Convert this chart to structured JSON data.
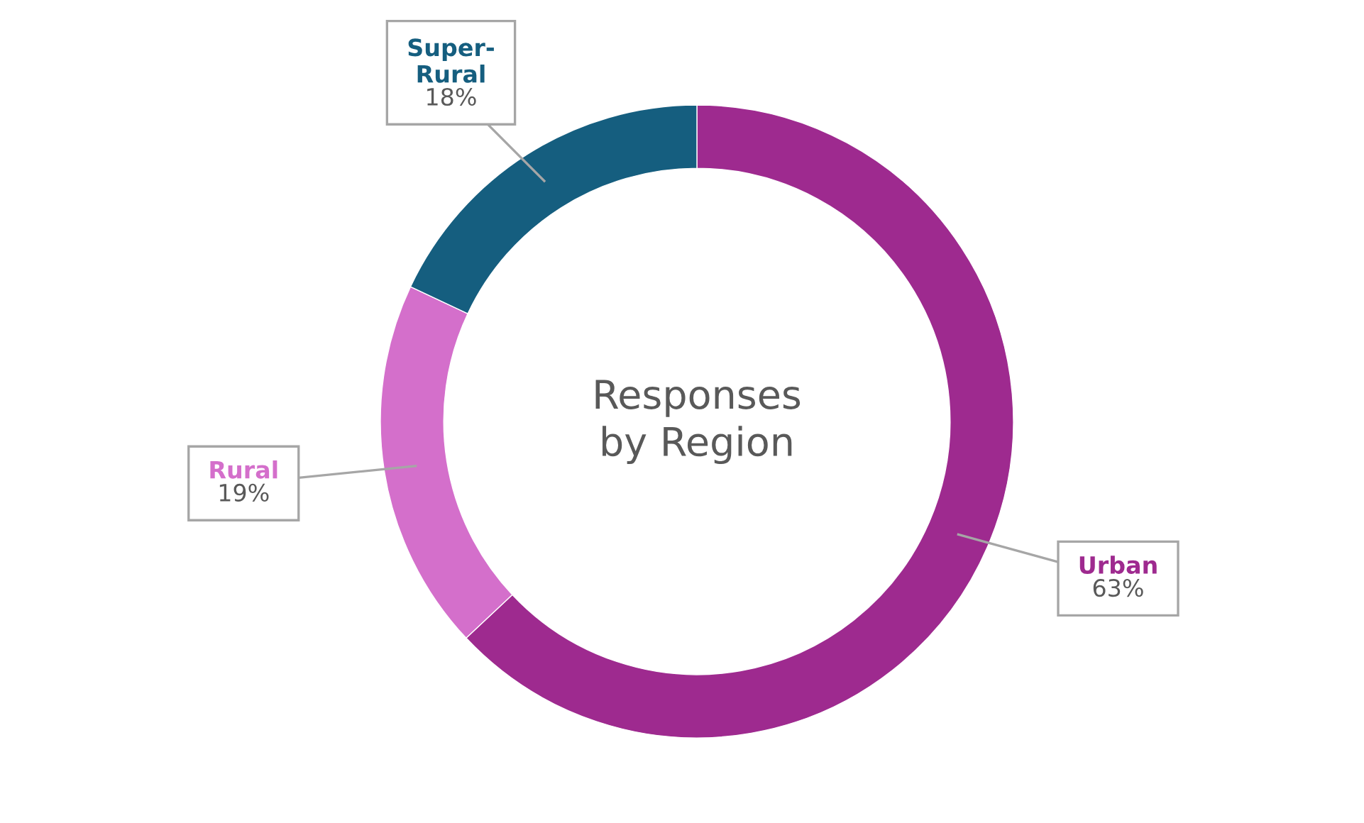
{
  "chart_data": {
    "type": "donut",
    "title": "Responses\nby Region",
    "categories": [
      "Urban",
      "Rural",
      "Super-\nRural"
    ],
    "values": [
      63,
      19,
      18
    ],
    "value_labels": [
      "63%",
      "19%",
      "18%"
    ],
    "colors": [
      "#9e2a8f",
      "#d46fcb",
      "#155e7f"
    ],
    "legend": false
  }
}
